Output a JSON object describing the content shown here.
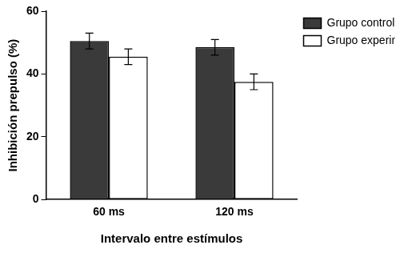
{
  "chart_data": {
    "type": "bar",
    "x_label": "Intervalo entre estímulos",
    "y_label": "Inhibición prepulso (%)",
    "categories": [
      "60 ms",
      "120 ms"
    ],
    "series": [
      {
        "name": "Grupo control",
        "color": "#3a3a3a",
        "values": [
          50.5,
          48.5
        ],
        "errors": [
          2.5,
          2.5
        ]
      },
      {
        "name": "Grupo experimental",
        "color": "#ffffff",
        "values": [
          45.5,
          37.5
        ],
        "errors": [
          2.5,
          2.5
        ]
      }
    ],
    "ylim": [
      0,
      60
    ],
    "yticks": [
      0,
      20,
      40,
      60
    ],
    "grid": false,
    "legend": "right"
  }
}
